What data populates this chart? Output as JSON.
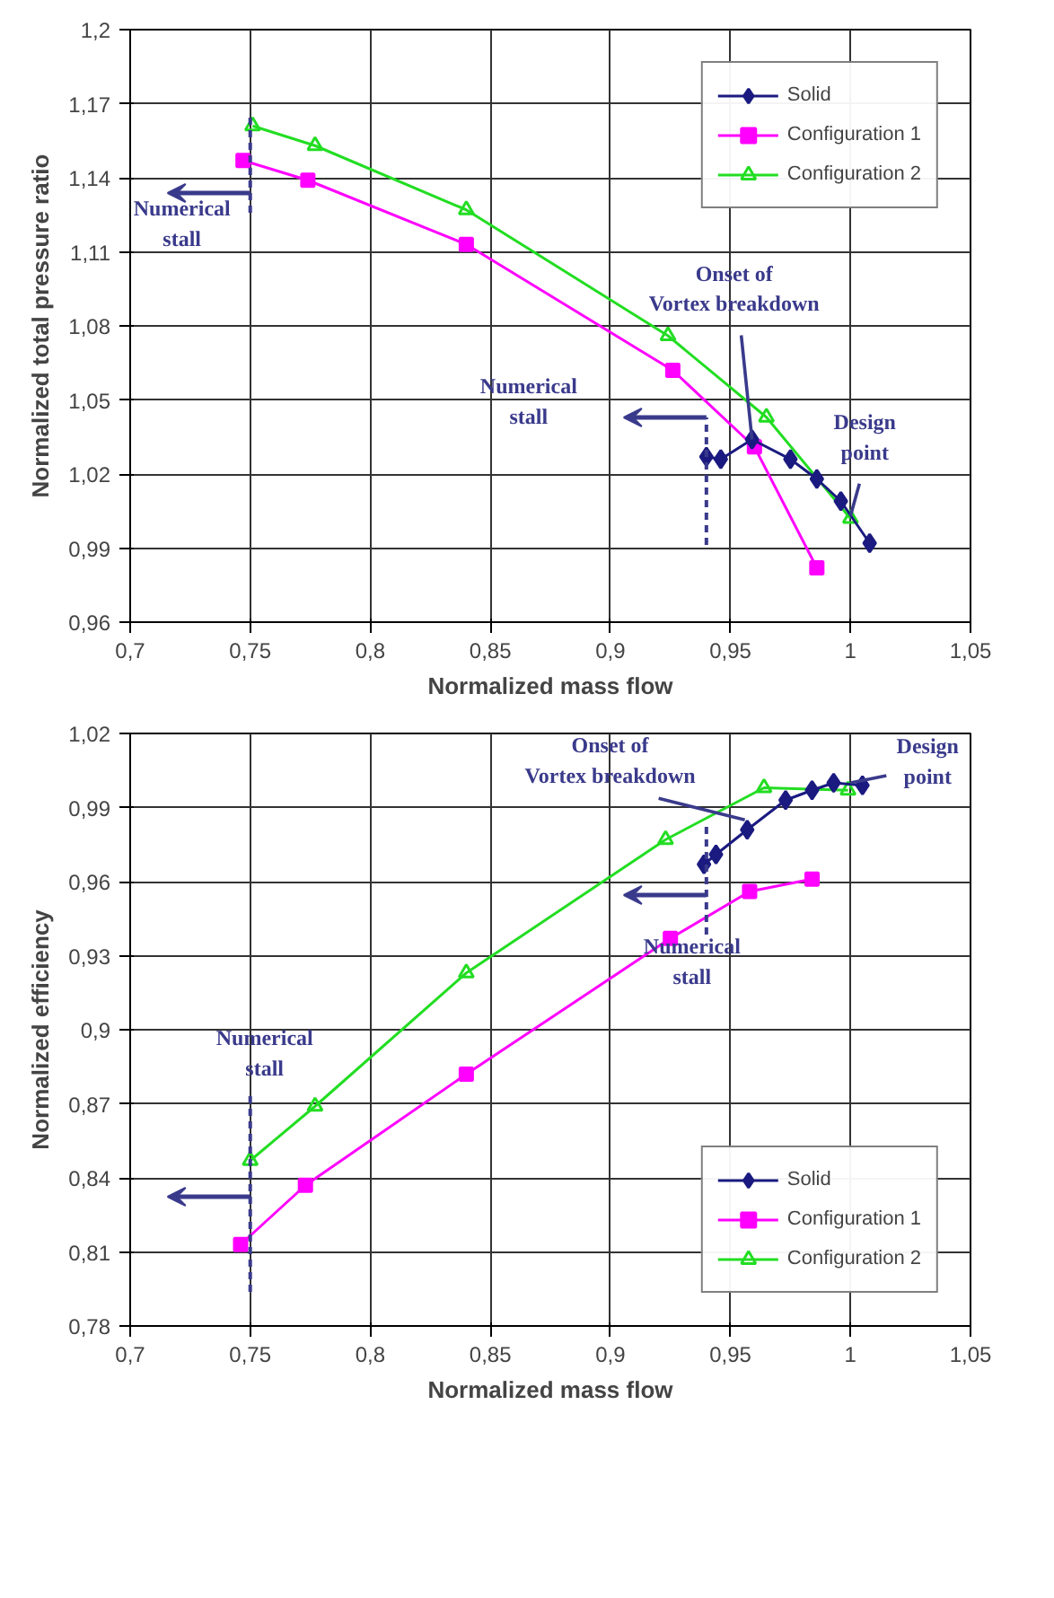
{
  "chart_data": [
    {
      "type": "line",
      "xlabel": "Normalized mass flow",
      "ylabel": "Normalized total pressure ratio",
      "xlim": [
        0.7,
        1.05
      ],
      "ylim": [
        0.96,
        1.2
      ],
      "xticks": [
        {
          "value": 0.7,
          "label": "0,7"
        },
        {
          "value": 0.75,
          "label": "0,75"
        },
        {
          "value": 0.8,
          "label": "0,8"
        },
        {
          "value": 0.85,
          "label": "0,85"
        },
        {
          "value": 0.9,
          "label": "0,9"
        },
        {
          "value": 0.95,
          "label": "0,95"
        },
        {
          "value": 1.0,
          "label": "1"
        },
        {
          "value": 1.05,
          "label": "1,05"
        }
      ],
      "yticks": [
        {
          "value": 0.96,
          "label": "0,96"
        },
        {
          "value": 0.99,
          "label": "0,99"
        },
        {
          "value": 1.02,
          "label": "1,02"
        },
        {
          "value": 1.05,
          "label": "1,05"
        },
        {
          "value": 1.08,
          "label": "1,08"
        },
        {
          "value": 1.11,
          "label": "1,11"
        },
        {
          "value": 1.14,
          "label": "1,14"
        },
        {
          "value": 1.17,
          "label": "1,17"
        },
        {
          "value": 1.2,
          "label": "1,2"
        }
      ],
      "grid": true,
      "legend": "top right",
      "line_style": "solid",
      "series": [
        {
          "name": "Solid",
          "color": "#1a1a80",
          "marker": "diamond",
          "x": [
            0.94,
            0.946,
            0.959,
            0.975,
            0.986,
            0.996,
            1.008
          ],
          "values": [
            1.027,
            1.026,
            1.034,
            1.026,
            1.018,
            1.009,
            0.992
          ]
        },
        {
          "name": "Configuration 1",
          "color": "#ff00ff",
          "marker": "square",
          "x": [
            0.747,
            0.774,
            0.84,
            0.926,
            0.96,
            0.986
          ],
          "values": [
            1.147,
            1.139,
            1.113,
            1.062,
            1.031,
            0.982
          ]
        },
        {
          "name": "Configuration 2",
          "color": "#22dd22",
          "marker": "triangle",
          "x": [
            0.751,
            0.777,
            0.84,
            0.924,
            0.965,
            1.0
          ],
          "values": [
            1.161,
            1.153,
            1.127,
            1.076,
            1.043,
            1.002
          ]
        }
      ],
      "annotations": [
        {
          "text": "Onset of Vortex breakdown",
          "x": 0.959,
          "y": 1.034
        },
        {
          "text": "Design point",
          "x": 1.0,
          "y": 1.003
        }
      ],
      "ref_lines": [
        {
          "axis": "x",
          "value": 0.75,
          "label": "Numerical stall",
          "color": "#3a3a8c",
          "line_style": "dashed"
        },
        {
          "axis": "x",
          "value": 0.94,
          "label": "Numerical stall",
          "color": "#3a3a8c",
          "line_style": "dashed"
        }
      ]
    },
    {
      "type": "line",
      "xlabel": "Normalized mass flow",
      "ylabel": "Normalized efficiency",
      "xlim": [
        0.7,
        1.05
      ],
      "ylim": [
        0.78,
        1.02
      ],
      "xticks": [
        {
          "value": 0.7,
          "label": "0,7"
        },
        {
          "value": 0.75,
          "label": "0,75"
        },
        {
          "value": 0.8,
          "label": "0,8"
        },
        {
          "value": 0.85,
          "label": "0,85"
        },
        {
          "value": 0.9,
          "label": "0,9"
        },
        {
          "value": 0.95,
          "label": "0,95"
        },
        {
          "value": 1.0,
          "label": "1"
        },
        {
          "value": 1.05,
          "label": "1,05"
        }
      ],
      "yticks": [
        {
          "value": 0.78,
          "label": "0,78"
        },
        {
          "value": 0.81,
          "label": "0,81"
        },
        {
          "value": 0.84,
          "label": "0,84"
        },
        {
          "value": 0.87,
          "label": "0,87"
        },
        {
          "value": 0.9,
          "label": "0,9"
        },
        {
          "value": 0.93,
          "label": "0,93"
        },
        {
          "value": 0.96,
          "label": "0,96"
        },
        {
          "value": 0.99,
          "label": "0,99"
        },
        {
          "value": 1.02,
          "label": "1,02"
        }
      ],
      "grid": true,
      "legend": "bottom right",
      "line_style": "solid",
      "series": [
        {
          "name": "Solid",
          "color": "#1a1a80",
          "marker": "diamond",
          "x": [
            0.939,
            0.944,
            0.957,
            0.973,
            0.984,
            0.993,
            1.005
          ],
          "values": [
            0.967,
            0.971,
            0.981,
            0.993,
            0.997,
            1.0,
            0.999
          ]
        },
        {
          "name": "Configuration 1",
          "color": "#ff00ff",
          "marker": "square",
          "x": [
            0.746,
            0.773,
            0.84,
            0.925,
            0.958,
            0.984
          ],
          "values": [
            0.813,
            0.837,
            0.882,
            0.937,
            0.956,
            0.961
          ]
        },
        {
          "name": "Configuration 2",
          "color": "#22dd22",
          "marker": "triangle",
          "x": [
            0.75,
            0.777,
            0.84,
            0.923,
            0.964,
            0.999
          ],
          "values": [
            0.847,
            0.869,
            0.923,
            0.977,
            0.998,
            0.997
          ]
        }
      ],
      "annotations": [
        {
          "text": "Onset of Vortex breakdown",
          "x": 0.956,
          "y": 0.985
        },
        {
          "text": "Design point",
          "x": 1.0,
          "y": 1.0
        }
      ],
      "ref_lines": [
        {
          "axis": "x",
          "value": 0.75,
          "label": "Numerical stall",
          "color": "#3a3a8c",
          "line_style": "dashed"
        },
        {
          "axis": "x",
          "value": 0.94,
          "label": "Numerical stall",
          "color": "#3a3a8c",
          "line_style": "dashed"
        }
      ]
    }
  ]
}
